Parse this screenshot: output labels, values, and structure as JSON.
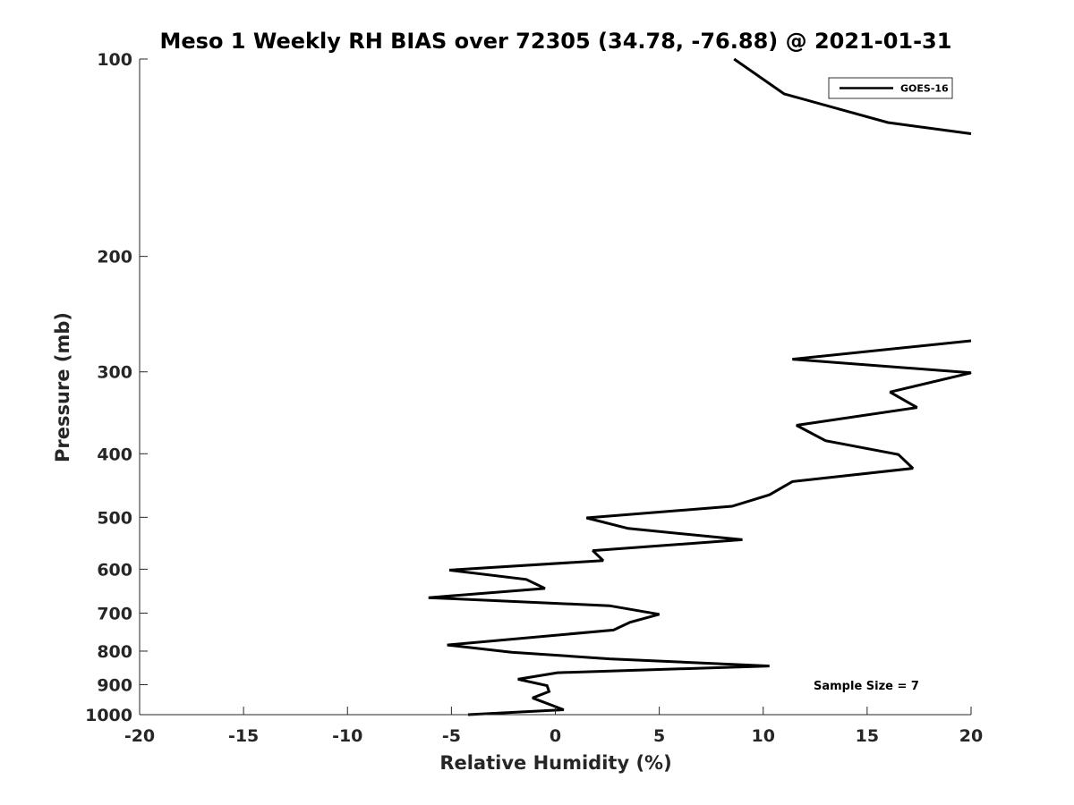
{
  "chart_data": {
    "type": "line",
    "title": "Meso 1 Weekly RH BIAS over 72305 (34.78, -76.88) @ 2021-01-31",
    "xlabel": "Relative Humidity (%)",
    "ylabel": "Pressure (mb)",
    "xlim": [
      -20,
      20
    ],
    "ylim": [
      1000,
      100
    ],
    "yscale": "log",
    "y_reversed": true,
    "grid": false,
    "legend_placement": "top-right",
    "x_ticks": [
      -20,
      -15,
      -10,
      -5,
      0,
      5,
      10,
      15,
      20
    ],
    "x_tick_labels": [
      "-20",
      "-15",
      "-10",
      "-5",
      "0",
      "5",
      "10",
      "15",
      "20"
    ],
    "y_ticks": [
      100,
      200,
      300,
      400,
      500,
      600,
      700,
      800,
      900,
      1000
    ],
    "y_tick_labels": [
      "100",
      "200",
      "300",
      "400",
      "500",
      "600",
      "700",
      "800",
      "900",
      "1000"
    ],
    "series": [
      {
        "name": "GOES-16",
        "color": "#000000",
        "segments": [
          [
            {
              "x": 8.6,
              "y": 100
            },
            {
              "x": 11.0,
              "y": 113
            },
            {
              "x": 16.0,
              "y": 125
            },
            {
              "x": 20.0,
              "y": 130
            }
          ],
          [
            {
              "x": 20.0,
              "y": 269
            },
            {
              "x": 11.4,
              "y": 287
            },
            {
              "x": 20.0,
              "y": 301
            },
            {
              "x": 16.1,
              "y": 322
            },
            {
              "x": 17.4,
              "y": 340
            },
            {
              "x": 11.6,
              "y": 362
            },
            {
              "x": 13.0,
              "y": 382
            },
            {
              "x": 16.5,
              "y": 401
            },
            {
              "x": 17.2,
              "y": 421
            },
            {
              "x": 11.4,
              "y": 441
            },
            {
              "x": 10.3,
              "y": 462
            },
            {
              "x": 8.5,
              "y": 481
            },
            {
              "x": 1.5,
              "y": 501
            },
            {
              "x": 3.5,
              "y": 520
            },
            {
              "x": 9.0,
              "y": 541
            },
            {
              "x": 1.8,
              "y": 562
            },
            {
              "x": 2.3,
              "y": 582
            },
            {
              "x": -5.1,
              "y": 602
            },
            {
              "x": -1.4,
              "y": 622
            },
            {
              "x": -0.5,
              "y": 642
            },
            {
              "x": -6.1,
              "y": 663
            },
            {
              "x": 2.6,
              "y": 682
            },
            {
              "x": 5.0,
              "y": 703
            },
            {
              "x": 3.6,
              "y": 723
            },
            {
              "x": 2.8,
              "y": 743
            },
            {
              "x": -5.2,
              "y": 783
            },
            {
              "x": -2.1,
              "y": 803
            },
            {
              "x": 2.6,
              "y": 822
            },
            {
              "x": 10.3,
              "y": 843
            },
            {
              "x": 0.1,
              "y": 863
            },
            {
              "x": -1.8,
              "y": 883
            },
            {
              "x": -0.4,
              "y": 903
            },
            {
              "x": -0.3,
              "y": 922
            },
            {
              "x": -1.1,
              "y": 943
            },
            {
              "x": 0.4,
              "y": 983
            },
            {
              "x": -4.2,
              "y": 1000
            }
          ]
        ]
      }
    ],
    "annotations": [
      {
        "text": "Sample Size = 7"
      }
    ]
  }
}
